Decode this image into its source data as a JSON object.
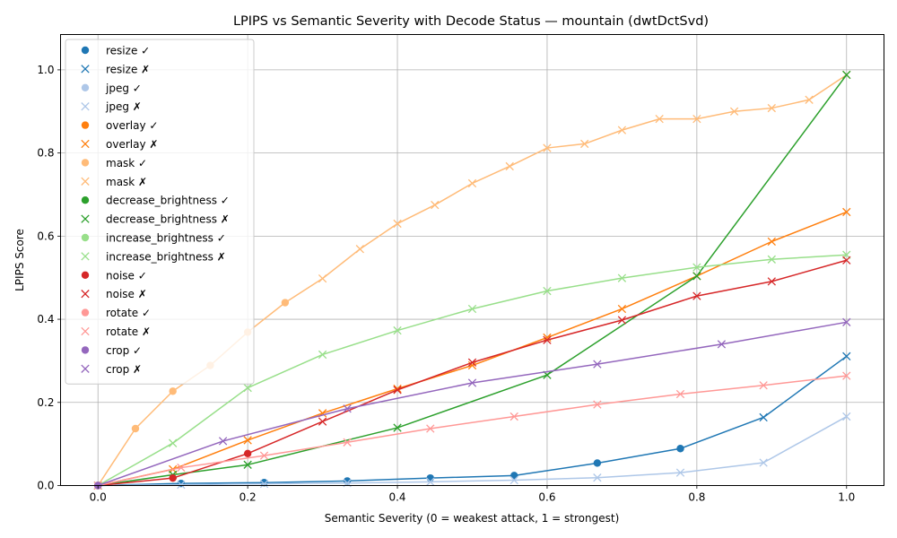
{
  "chart_data": {
    "type": "line",
    "title": "LPIPS vs Semantic Severity with Decode Status — mountain (dwtDctSvd)",
    "xlabel": "Semantic Severity (0 = weakest attack, 1 = strongest)",
    "ylabel": "LPIPS Score",
    "xlim": [
      -0.05,
      1.05
    ],
    "ylim": [
      0,
      1.085
    ],
    "xticks": [
      0.0,
      0.2,
      0.4,
      0.6,
      0.8,
      1.0
    ],
    "yticks": [
      0.0,
      0.2,
      0.4,
      0.6,
      0.8,
      1.0
    ],
    "xtick_labels": [
      "0.0",
      "0.2",
      "0.4",
      "0.6",
      "0.8",
      "1.0"
    ],
    "ytick_labels": [
      "0.0",
      "0.2",
      "0.4",
      "0.6",
      "0.8",
      "1.0"
    ],
    "grid": true,
    "legend_position": "upper-left",
    "legend": [
      {
        "label": "resize ✓",
        "series": "resize",
        "marker": "o"
      },
      {
        "label": "resize ✗",
        "series": "resize",
        "marker": "x"
      },
      {
        "label": "jpeg ✓",
        "series": "jpeg",
        "marker": "o"
      },
      {
        "label": "jpeg ✗",
        "series": "jpeg",
        "marker": "x"
      },
      {
        "label": "overlay ✓",
        "series": "overlay",
        "marker": "o"
      },
      {
        "label": "overlay ✗",
        "series": "overlay",
        "marker": "x"
      },
      {
        "label": "mask ✓",
        "series": "mask",
        "marker": "o"
      },
      {
        "label": "mask ✗",
        "series": "mask",
        "marker": "x"
      },
      {
        "label": "decrease_brightness ✓",
        "series": "decrease_brightness",
        "marker": "o"
      },
      {
        "label": "decrease_brightness ✗",
        "series": "decrease_brightness",
        "marker": "x"
      },
      {
        "label": "increase_brightness ✓",
        "series": "increase_brightness",
        "marker": "o"
      },
      {
        "label": "increase_brightness ✗",
        "series": "increase_brightness",
        "marker": "x"
      },
      {
        "label": "noise ✓",
        "series": "noise",
        "marker": "o"
      },
      {
        "label": "noise ✗",
        "series": "noise",
        "marker": "x"
      },
      {
        "label": "rotate ✓",
        "series": "rotate",
        "marker": "o"
      },
      {
        "label": "rotate ✗",
        "series": "rotate",
        "marker": "x"
      },
      {
        "label": "crop ✓",
        "series": "crop",
        "marker": "o"
      },
      {
        "label": "crop ✗",
        "series": "crop",
        "marker": "x"
      }
    ],
    "series": [
      {
        "name": "resize",
        "color": "#1f77b4",
        "points": [
          [
            0.0,
            0.0,
            "o"
          ],
          [
            0.111,
            0.005,
            "o"
          ],
          [
            0.222,
            0.007,
            "o"
          ],
          [
            0.333,
            0.011,
            "o"
          ],
          [
            0.444,
            0.018,
            "o"
          ],
          [
            0.556,
            0.024,
            "o"
          ],
          [
            0.667,
            0.054,
            "o"
          ],
          [
            0.778,
            0.089,
            "o"
          ],
          [
            0.889,
            0.164,
            "x"
          ],
          [
            1.0,
            0.311,
            "x"
          ]
        ]
      },
      {
        "name": "jpeg",
        "color": "#aec7e8",
        "points": [
          [
            0.0,
            0.0,
            "x"
          ],
          [
            0.111,
            0.002,
            "x"
          ],
          [
            0.222,
            0.004,
            "x"
          ],
          [
            0.333,
            0.006,
            "x"
          ],
          [
            0.444,
            0.009,
            "x"
          ],
          [
            0.556,
            0.013,
            "x"
          ],
          [
            0.667,
            0.019,
            "x"
          ],
          [
            0.778,
            0.031,
            "x"
          ],
          [
            0.889,
            0.055,
            "x"
          ],
          [
            1.0,
            0.166,
            "x"
          ]
        ]
      },
      {
        "name": "overlay",
        "color": "#ff7f0e",
        "points": [
          [
            0.0,
            0.0,
            "x"
          ],
          [
            0.1,
            0.039,
            "x"
          ],
          [
            0.2,
            0.109,
            "x"
          ],
          [
            0.3,
            0.174,
            "x"
          ],
          [
            0.4,
            0.233,
            "x"
          ],
          [
            0.5,
            0.289,
            "x"
          ],
          [
            0.6,
            0.356,
            "x"
          ],
          [
            0.7,
            0.425,
            "x"
          ],
          [
            0.8,
            0.504,
            "x"
          ],
          [
            0.9,
            0.587,
            "x"
          ],
          [
            1.0,
            0.658,
            "x"
          ]
        ]
      },
      {
        "name": "mask",
        "color": "#ffbb78",
        "points": [
          [
            0.0,
            0.0,
            "o"
          ],
          [
            0.05,
            0.137,
            "o"
          ],
          [
            0.1,
            0.227,
            "o"
          ],
          [
            0.15,
            0.289,
            "o"
          ],
          [
            0.2,
            0.369,
            "o"
          ],
          [
            0.25,
            0.44,
            "o"
          ],
          [
            0.3,
            0.498,
            "x"
          ],
          [
            0.35,
            0.569,
            "x"
          ],
          [
            0.4,
            0.63,
            "x"
          ],
          [
            0.45,
            0.675,
            "x"
          ],
          [
            0.5,
            0.727,
            "x"
          ],
          [
            0.55,
            0.768,
            "x"
          ],
          [
            0.6,
            0.812,
            "x"
          ],
          [
            0.65,
            0.822,
            "x"
          ],
          [
            0.7,
            0.855,
            "x"
          ],
          [
            0.75,
            0.882,
            "x"
          ],
          [
            0.8,
            0.882,
            "x"
          ],
          [
            0.85,
            0.9,
            "x"
          ],
          [
            0.9,
            0.908,
            "x"
          ],
          [
            0.95,
            0.928,
            "x"
          ],
          [
            1.0,
            0.988,
            "x"
          ]
        ]
      },
      {
        "name": "decrease_brightness",
        "color": "#2ca02c",
        "points": [
          [
            0.0,
            0.0,
            "x"
          ],
          [
            0.1,
            0.026,
            "x"
          ],
          [
            0.2,
            0.05,
            "x"
          ],
          [
            0.4,
            0.139,
            "x"
          ],
          [
            0.6,
            0.266,
            "x"
          ],
          [
            0.8,
            0.504,
            "x"
          ],
          [
            1.0,
            0.988,
            "x"
          ]
        ]
      },
      {
        "name": "increase_brightness",
        "color": "#98df8a",
        "points": [
          [
            0.0,
            0.0,
            "x"
          ],
          [
            0.1,
            0.102,
            "x"
          ],
          [
            0.2,
            0.235,
            "x"
          ],
          [
            0.3,
            0.315,
            "x"
          ],
          [
            0.4,
            0.373,
            "x"
          ],
          [
            0.5,
            0.425,
            "x"
          ],
          [
            0.6,
            0.468,
            "x"
          ],
          [
            0.7,
            0.499,
            "x"
          ],
          [
            0.8,
            0.525,
            "x"
          ],
          [
            0.9,
            0.544,
            "x"
          ],
          [
            1.0,
            0.555,
            "x"
          ]
        ]
      },
      {
        "name": "noise",
        "color": "#d62728",
        "points": [
          [
            0.0,
            0.0,
            "o"
          ],
          [
            0.1,
            0.018,
            "o"
          ],
          [
            0.2,
            0.077,
            "o"
          ],
          [
            0.3,
            0.154,
            "x"
          ],
          [
            0.4,
            0.23,
            "x"
          ],
          [
            0.5,
            0.296,
            "x"
          ],
          [
            0.6,
            0.35,
            "x"
          ],
          [
            0.7,
            0.398,
            "x"
          ],
          [
            0.8,
            0.456,
            "x"
          ],
          [
            0.9,
            0.491,
            "x"
          ],
          [
            1.0,
            0.542,
            "x"
          ]
        ]
      },
      {
        "name": "rotate",
        "color": "#ff9896",
        "points": [
          [
            0.0,
            0.0,
            "x"
          ],
          [
            0.111,
            0.043,
            "x"
          ],
          [
            0.222,
            0.072,
            "x"
          ],
          [
            0.333,
            0.104,
            "x"
          ],
          [
            0.444,
            0.137,
            "x"
          ],
          [
            0.556,
            0.166,
            "x"
          ],
          [
            0.667,
            0.195,
            "x"
          ],
          [
            0.778,
            0.22,
            "x"
          ],
          [
            0.889,
            0.241,
            "x"
          ],
          [
            1.0,
            0.264,
            "x"
          ]
        ]
      },
      {
        "name": "crop",
        "color": "#9467bd",
        "points": [
          [
            0.0,
            0.0,
            "o"
          ],
          [
            0.167,
            0.107,
            "x"
          ],
          [
            0.333,
            0.185,
            "x"
          ],
          [
            0.5,
            0.247,
            "x"
          ],
          [
            0.667,
            0.292,
            "x"
          ],
          [
            0.833,
            0.34,
            "x"
          ],
          [
            1.0,
            0.393,
            "x"
          ]
        ]
      }
    ]
  }
}
